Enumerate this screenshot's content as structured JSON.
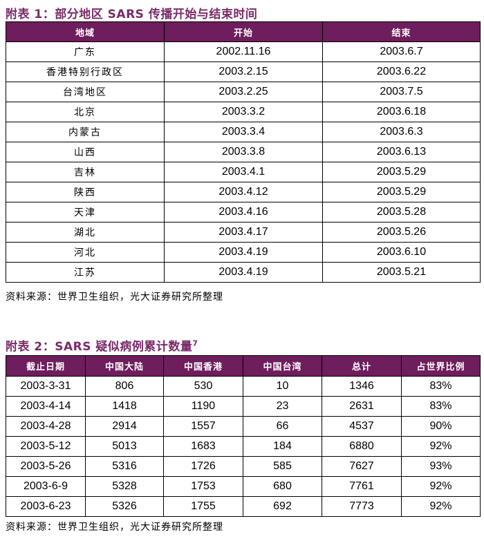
{
  "table1": {
    "caption": "附表 1：部分地区 SARS 传播开始与结束时间",
    "headers": [
      "地域",
      "开始",
      "结束"
    ],
    "rows": [
      [
        "广东",
        "2002.11.16",
        "2003.6.7"
      ],
      [
        "香港特别行政区",
        "2003.2.15",
        "2003.6.22"
      ],
      [
        "台湾地区",
        "2003.2.25",
        "2003.7.5"
      ],
      [
        "北京",
        "2003.3.2",
        "2003.6.18"
      ],
      [
        "内蒙古",
        "2003.3.4",
        "2003.6.3"
      ],
      [
        "山西",
        "2003.3.8",
        "2003.6.13"
      ],
      [
        "吉林",
        "2003.4.1",
        "2003.5.29"
      ],
      [
        "陕西",
        "2003.4.12",
        "2003.5.29"
      ],
      [
        "天津",
        "2003.4.16",
        "2003.5.28"
      ],
      [
        "湖北",
        "2003.4.17",
        "2003.5.26"
      ],
      [
        "河北",
        "2003.4.19",
        "2003.6.10"
      ],
      [
        "江苏",
        "2003.4.19",
        "2003.5.21"
      ]
    ],
    "source": "资料来源：世界卫生组织，光大证券研究所整理"
  },
  "table2": {
    "caption": "附表 2：SARS 疑似病例累计数量",
    "caption_footnote": "7",
    "headers": [
      "截止日期",
      "中国大陆",
      "中国香港",
      "中国台湾",
      "总计",
      "占世界比例"
    ],
    "rows": [
      [
        "2003-3-31",
        "806",
        "530",
        "10",
        "1346",
        "83%"
      ],
      [
        "2003-4-14",
        "1418",
        "1190",
        "23",
        "2631",
        "83%"
      ],
      [
        "2003-4-28",
        "2914",
        "1557",
        "66",
        "4537",
        "90%"
      ],
      [
        "2003-5-12",
        "5013",
        "1683",
        "184",
        "6880",
        "92%"
      ],
      [
        "2003-5-26",
        "5316",
        "1726",
        "585",
        "7627",
        "93%"
      ],
      [
        "2003-6-9",
        "5328",
        "1753",
        "680",
        "7761",
        "92%"
      ],
      [
        "2003-6-23",
        "5326",
        "1755",
        "692",
        "7773",
        "92%"
      ]
    ],
    "source": "资料来源：世界卫生组织，光大证券研究所整理"
  }
}
